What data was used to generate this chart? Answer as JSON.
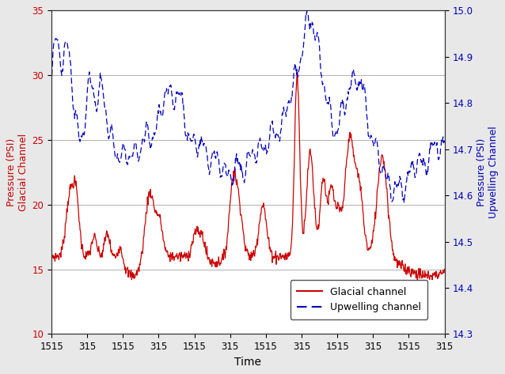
{
  "title": "",
  "xlabel": "Time",
  "ylabel_left": "Pressure (PSI)\nGlacial Channel",
  "ylabel_right": "Pressure (PSI)\nUpwelling Channel",
  "ylim_left": [
    10,
    35
  ],
  "ylim_right": [
    14.3,
    15.0
  ],
  "yticks_left": [
    10,
    15,
    20,
    25,
    30,
    35
  ],
  "yticks_right": [
    14.3,
    14.4,
    14.5,
    14.6,
    14.7,
    14.8,
    14.9,
    15.0
  ],
  "xtick_labels": [
    "1515",
    "315",
    "1515",
    "315",
    "1515",
    "315",
    "1515",
    "315",
    "1515",
    "315",
    "1515",
    "315"
  ],
  "color_glacial": "#cc0000",
  "color_upwelling": "#0000bb",
  "grid_color": "#b0b0b0",
  "background_color": "#ffffff",
  "fig_bg_color": "#e8e8e8"
}
